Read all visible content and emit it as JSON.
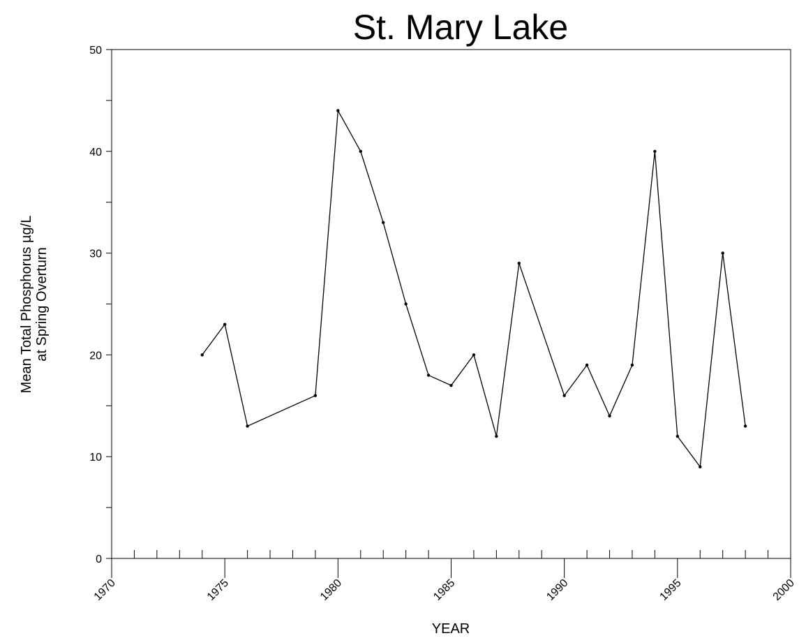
{
  "chart_data": {
    "type": "line",
    "title": "St. Mary Lake",
    "x_label": "YEAR",
    "y_label": [
      "Mean Total Phosphorus µg/L",
      "at Spring Overturn"
    ],
    "x": [
      1974,
      1975,
      1976,
      1979,
      1980,
      1981,
      1982,
      1983,
      1984,
      1985,
      1986,
      1987,
      1988,
      1990,
      1991,
      1992,
      1993,
      1994,
      1995,
      1996,
      1997,
      1998
    ],
    "series": [
      {
        "color": "#000000",
        "values": [
          20,
          23,
          13,
          16,
          44,
          40,
          33,
          25,
          18,
          17,
          20,
          12,
          29,
          16,
          19,
          14,
          19,
          40,
          12,
          9,
          30,
          13
        ]
      }
    ],
    "xlim": [
      1970,
      2000
    ],
    "xticks": [
      1970,
      1975,
      1980,
      1985,
      1990,
      1995,
      2000
    ],
    "ylim": [
      0,
      50
    ],
    "yticks": [
      0,
      10,
      20,
      30,
      40,
      50
    ]
  }
}
